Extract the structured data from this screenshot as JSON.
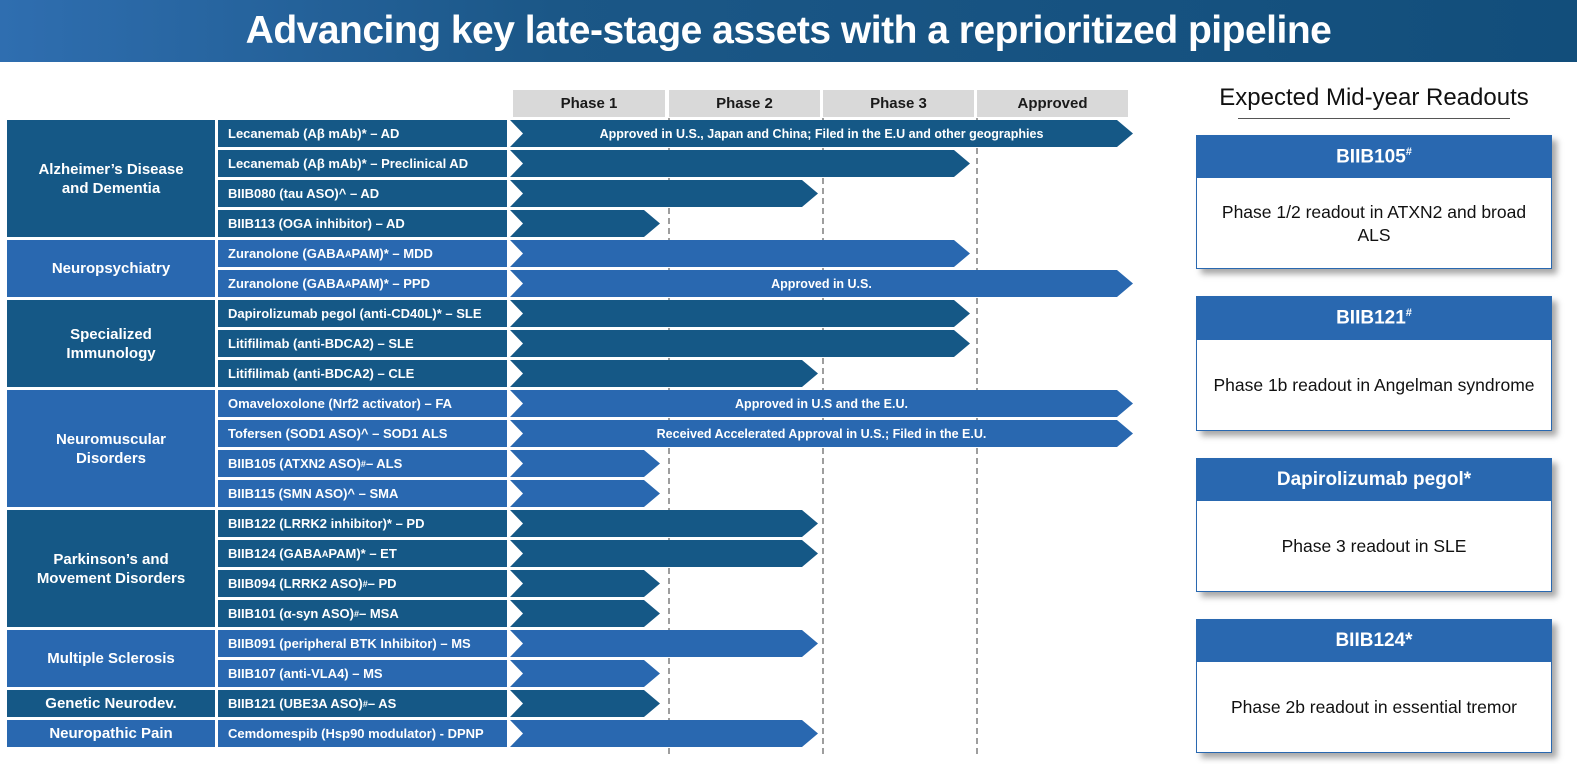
{
  "header": {
    "title": "Advancing key late-stage assets with a reprioritized pipeline"
  },
  "colors": {
    "dark_blue": "#155886",
    "light_blue": "#2968B0",
    "phase_header_gray": "#D9D9D9",
    "title_gradient_left": "#2F6EB0",
    "title_gradient_right": "#124E7B"
  },
  "readouts": {
    "heading": "Expected Mid-year Readouts",
    "cards": [
      {
        "title": "BIIB105{sup:#}",
        "body": "Phase 1/2 readout in ATXN2 and broad ALS"
      },
      {
        "title": "BIIB121{sup:#}",
        "body": "Phase 1b readout in Angelman syndrome"
      },
      {
        "title": "Dapirolizumab pegol*",
        "body": "Phase 3 readout in SLE"
      },
      {
        "title": "BIIB124*",
        "body": "Phase 2b readout in essential tremor"
      }
    ]
  },
  "chart_data": {
    "type": "bar",
    "subtype": "horizontal-pipeline-gantt",
    "categories": [
      "Phase 1",
      "Phase 2",
      "Phase 3",
      "Approved"
    ],
    "legend": "none",
    "grid": "dashed vertical lines at phase boundaries",
    "groups": [
      {
        "label": "Alzheimer’s Disease\nand Dementia",
        "tone": "dark",
        "rows": [
          {
            "drug": "Lecanemab (Aβ mAb)* – AD",
            "stage": "approved",
            "note": "Approved in U.S., Japan and China; Filed in the E.U and other geographies"
          },
          {
            "drug": "Lecanemab (Aβ mAb)* – Preclinical AD",
            "stage": "phase3"
          },
          {
            "drug": "BIIB080 (tau ASO)^ – AD",
            "stage": "phase2"
          },
          {
            "drug": "BIIB113 (OGA inhibitor) – AD",
            "stage": "phase1"
          }
        ]
      },
      {
        "label": "Neuropsychiatry",
        "tone": "light",
        "rows": [
          {
            "drug": "Zuranolone (GABA{sub:A} PAM)* – MDD",
            "stage": "phase3"
          },
          {
            "drug": "Zuranolone (GABA{sub:A} PAM)* – PPD",
            "stage": "approved",
            "note": "Approved in U.S."
          }
        ]
      },
      {
        "label": "Specialized\nImmunology",
        "tone": "dark",
        "rows": [
          {
            "drug": "Dapirolizumab pegol (anti-CD40L)* – SLE",
            "stage": "phase3"
          },
          {
            "drug": "Litifilimab (anti-BDCA2) – SLE",
            "stage": "phase3"
          },
          {
            "drug": "Litifilimab (anti-BDCA2) – CLE",
            "stage": "phase2"
          }
        ]
      },
      {
        "label": "Neuromuscular\nDisorders",
        "tone": "light",
        "rows": [
          {
            "drug": "Omaveloxolone (Nrf2 activator) – FA",
            "stage": "approved",
            "note": "Approved in U.S and the E.U."
          },
          {
            "drug": "Tofersen (SOD1 ASO)^ – SOD1 ALS",
            "stage": "approved",
            "note": "Received Accelerated Approval in U.S.; Filed in the E.U."
          },
          {
            "drug": "BIIB105 (ATXN2 ASO){sup:#} – ALS",
            "stage": "phase1"
          },
          {
            "drug": "BIIB115 (SMN ASO)^ – SMA",
            "stage": "phase1"
          }
        ]
      },
      {
        "label": "Parkinson’s and\nMovement Disorders",
        "tone": "dark",
        "rows": [
          {
            "drug": "BIIB122 (LRRK2 inhibitor)* – PD",
            "stage": "phase2"
          },
          {
            "drug": "BIIB124 (GABA{sub:A} PAM)* – ET",
            "stage": "phase2"
          },
          {
            "drug": "BIIB094 (LRRK2 ASO){sup:#} – PD",
            "stage": "phase1"
          },
          {
            "drug": "BIIB101 (α-syn ASO){sup:#} – MSA",
            "stage": "phase1"
          }
        ]
      },
      {
        "label": "Multiple Sclerosis",
        "tone": "light",
        "rows": [
          {
            "drug": "BIIB091 (peripheral BTK Inhibitor) – MS",
            "stage": "phase2"
          },
          {
            "drug": "BIIB107 (anti-VLA4) – MS",
            "stage": "phase1"
          }
        ]
      },
      {
        "label": "Genetic Neurodev.",
        "tone": "dark",
        "rows": [
          {
            "drug": "BIIB121 (UBE3A ASO){sup:#} – AS",
            "stage": "phase1"
          }
        ]
      },
      {
        "label": "Neuropathic Pain",
        "tone": "light",
        "rows": [
          {
            "drug": "Cemdomespib (Hsp90 modulator) - DPNP",
            "stage": "phase2"
          }
        ]
      }
    ]
  }
}
